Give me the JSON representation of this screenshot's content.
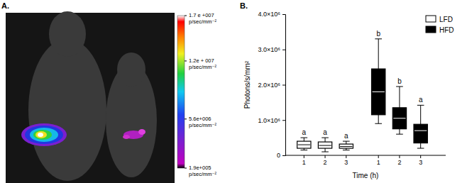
{
  "chart_data": [
    {
      "type": "image",
      "title": "A.",
      "colorbar": {
        "range": [
          190000,
          17000000
        ],
        "ticks": [
          {
            "value": 17000000,
            "label": "1.7 e +007"
          },
          {
            "value": 12000000,
            "label": "1.2e + 007"
          },
          {
            "value": 5600000,
            "label": "5.6e+006"
          },
          {
            "value": 190000,
            "label": "1.9e+005"
          }
        ],
        "unit": "p/sec/mm⁻²"
      }
    },
    {
      "type": "box",
      "title": "B.",
      "x_label": "Time (h)",
      "y_label": "Photons/s/mm²",
      "categories": [
        "1",
        "2",
        "3"
      ],
      "series": [
        {
          "name": "LFD",
          "color": "#ffffff",
          "values": [
            {
              "min": 150000,
              "q1": 200000,
              "median": 300000,
              "q3": 400000,
              "max": 500000
            },
            {
              "min": 100000,
              "q1": 200000,
              "median": 280000,
              "q3": 380000,
              "max": 500000
            },
            {
              "min": 150000,
              "q1": 200000,
              "median": 250000,
              "q3": 320000,
              "max": 400000
            }
          ],
          "letters": [
            "a",
            "a",
            "a"
          ]
        },
        {
          "name": "HFD",
          "color": "#000000",
          "values": [
            {
              "min": 900000,
              "q1": 1150000,
              "median": 1800000,
              "q3": 2450000,
              "max": 3300000
            },
            {
              "min": 600000,
              "q1": 750000,
              "median": 1050000,
              "q3": 1350000,
              "max": 1950000
            },
            {
              "min": 200000,
              "q1": 350000,
              "median": 700000,
              "q3": 880000,
              "max": 1420000
            }
          ],
          "letters": [
            "b",
            "b",
            "a"
          ]
        }
      ],
      "ylim": [
        0,
        4000000
      ],
      "yticks": [
        0,
        {
          "value": 1000000,
          "label": "1.0×10⁶"
        },
        {
          "value": 2000000,
          "label": "2.0×10⁶"
        },
        {
          "value": 3000000,
          "label": "3.0×10⁶"
        },
        {
          "value": 4000000,
          "label": "4.0×10⁶"
        }
      ],
      "legend": "top-right"
    }
  ]
}
